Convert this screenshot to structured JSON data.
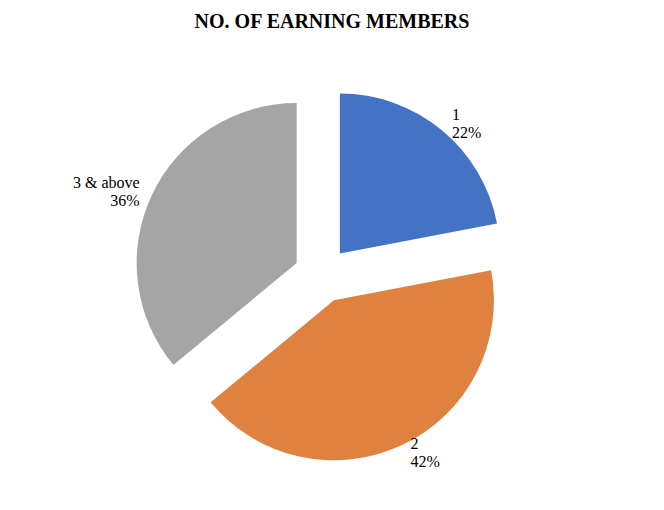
{
  "chart_data": {
    "type": "pie",
    "title": "NO. OF EARNING MEMBERS",
    "categories": [
      "1",
      "2",
      "3 & above"
    ],
    "values": [
      22,
      42,
      36
    ],
    "value_labels": [
      "22%",
      "42%",
      "36%"
    ],
    "colors": [
      "#4472c4",
      "#e0823f",
      "#a5a5a5"
    ],
    "data_labels": true
  }
}
